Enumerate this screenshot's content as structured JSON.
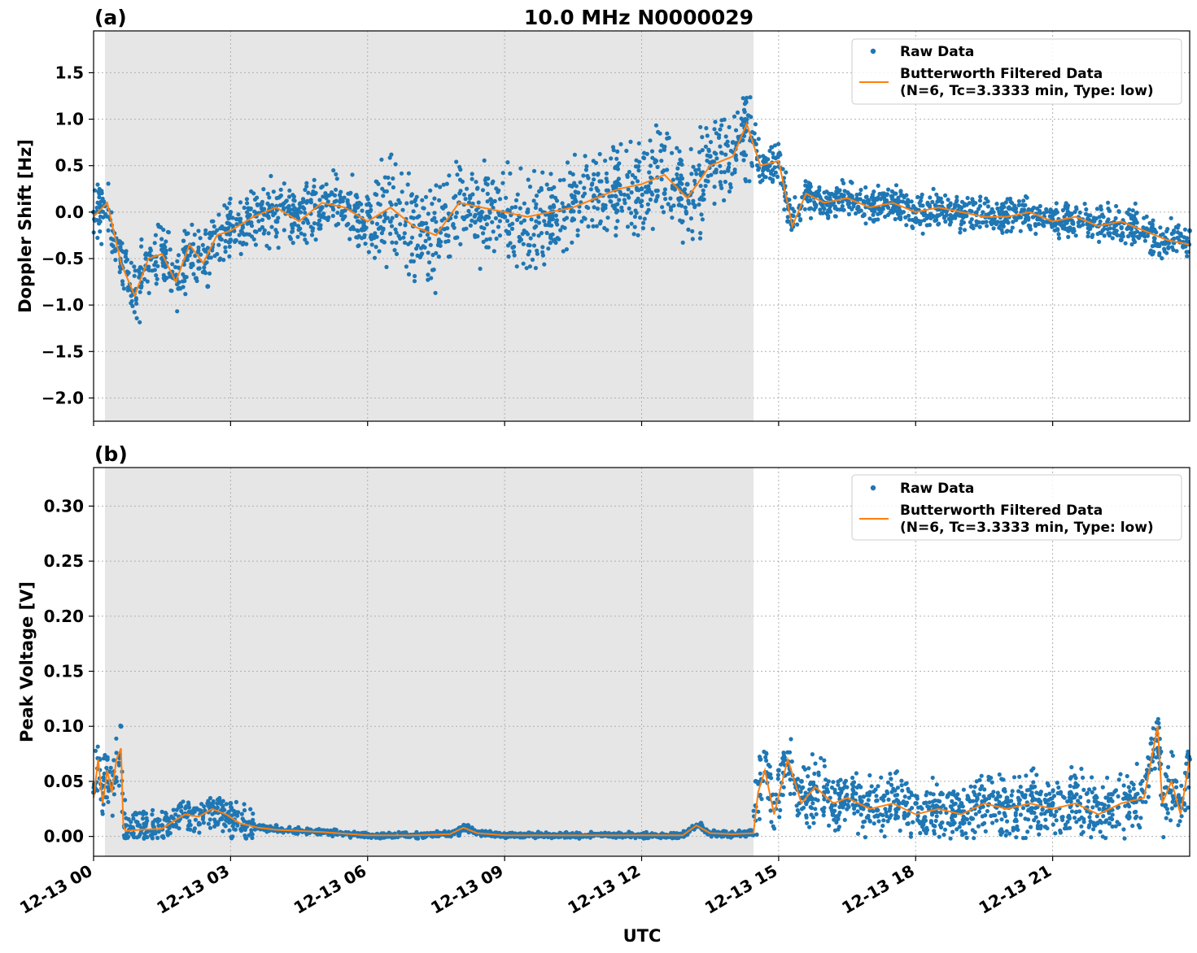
{
  "figure": {
    "title": "10.0 MHz N0000029",
    "xlabel": "UTC",
    "x_tick_labels": [
      "12-13 00",
      "12-13 03",
      "12-13 06",
      "12-13 09",
      "12-13 12",
      "12-13 15",
      "12-13 18",
      "12-13 21"
    ],
    "colors": {
      "raw": "#1f77b4",
      "filtered": "#ff7f0e",
      "night_shade": "#e6e6e6",
      "grid": "#b0b0b0"
    }
  },
  "chart_data": [
    {
      "type": "scatter",
      "panel_label": "(a)",
      "title": "10.0 MHz N0000029",
      "xlabel": "",
      "ylabel": "Doppler Shift [Hz]",
      "x_unit": "hours UTC on 12-13",
      "xlim": [
        0,
        24
      ],
      "ylim": [
        -2.25,
        1.95
      ],
      "y_ticks": [
        1.5,
        1.0,
        0.5,
        0.0,
        -0.5,
        -1.0,
        -1.5,
        -2.0
      ],
      "y_tick_labels": [
        "1.5",
        "1.0",
        "0.5",
        "0.0",
        "−0.5",
        "−1.0",
        "−1.5",
        "−2.0"
      ],
      "grid": true,
      "shaded_x_range": [
        0.25,
        14.45
      ],
      "legend": {
        "placement": "top-right",
        "entries": [
          "Raw Data",
          "Butterworth Filtered Data",
          "(N=6, Tc=3.3333 min, Type: low)"
        ]
      },
      "series": [
        {
          "name": "Raw Data",
          "style": "points",
          "x": [
            0.0,
            0.5,
            1.0,
            1.5,
            2.0,
            2.5,
            3.0,
            4.0,
            5.0,
            6.0,
            6.5,
            7.0,
            7.5,
            8.0,
            8.5,
            9.0,
            9.5,
            10.0,
            10.5,
            11.0,
            11.5,
            12.0,
            12.5,
            13.0,
            13.5,
            14.0,
            14.4,
            14.8,
            15.2,
            15.6,
            16.0,
            17.0,
            18.0,
            19.0,
            20.0,
            21.0,
            22.0,
            22.5,
            23.0,
            23.5,
            24.0
          ],
          "y": [
            0.0,
            -0.4,
            -0.7,
            -0.5,
            -0.7,
            -0.8,
            -0.3,
            -0.1,
            0.05,
            0.0,
            -0.1,
            -0.15,
            -0.2,
            0.1,
            0.0,
            -0.05,
            0.0,
            0.05,
            0.1,
            0.15,
            0.3,
            0.25,
            0.2,
            0.3,
            0.6,
            0.75,
            0.8,
            0.5,
            -0.1,
            0.15,
            0.1,
            0.05,
            0.0,
            0.0,
            -0.1,
            0.0,
            -0.15,
            -0.3,
            -0.2,
            -0.3,
            -0.2
          ]
        },
        {
          "name": "Butterworth Filtered Data",
          "style": "line",
          "x": [
            0.0,
            0.3,
            0.6,
            0.9,
            1.2,
            1.5,
            1.8,
            2.1,
            2.4,
            2.7,
            3.0,
            3.5,
            4.0,
            4.5,
            5.0,
            5.5,
            6.0,
            6.5,
            7.0,
            7.5,
            8.0,
            8.5,
            9.0,
            9.5,
            10.0,
            10.5,
            11.0,
            11.5,
            12.0,
            12.5,
            13.0,
            13.5,
            14.0,
            14.3,
            14.6,
            15.0,
            15.3,
            15.6,
            16.0,
            16.5,
            17.0,
            17.5,
            18.0,
            18.5,
            19.0,
            19.5,
            20.0,
            20.5,
            21.0,
            21.5,
            22.0,
            22.5,
            23.0,
            23.5,
            24.0
          ],
          "y": [
            -0.05,
            0.1,
            -0.55,
            -0.9,
            -0.5,
            -0.45,
            -0.75,
            -0.35,
            -0.55,
            -0.25,
            -0.2,
            -0.05,
            0.05,
            -0.1,
            0.1,
            0.05,
            -0.1,
            0.05,
            -0.15,
            -0.25,
            0.1,
            0.05,
            0.0,
            -0.05,
            0.0,
            0.05,
            0.15,
            0.25,
            0.3,
            0.4,
            0.15,
            0.5,
            0.6,
            0.95,
            0.5,
            0.55,
            -0.15,
            0.2,
            0.1,
            0.15,
            0.05,
            0.1,
            0.0,
            0.05,
            0.0,
            -0.05,
            -0.05,
            0.0,
            -0.1,
            -0.05,
            -0.15,
            -0.1,
            -0.2,
            -0.3,
            -0.35
          ]
        }
      ]
    },
    {
      "type": "scatter",
      "panel_label": "(b)",
      "title": "",
      "xlabel": "UTC",
      "ylabel": "Peak Voltage [V]",
      "x_unit": "hours UTC on 12-13",
      "xlim": [
        0,
        24
      ],
      "ylim": [
        -0.018,
        0.335
      ],
      "y_ticks": [
        0.3,
        0.25,
        0.2,
        0.15,
        0.1,
        0.05,
        0.0
      ],
      "y_tick_labels": [
        "0.30",
        "0.25",
        "0.20",
        "0.15",
        "0.10",
        "0.05",
        "0.00"
      ],
      "grid": true,
      "shaded_x_range": [
        0.25,
        14.45
      ],
      "legend": {
        "placement": "top-right",
        "entries": [
          "Raw Data",
          "Butterworth Filtered Data",
          "(N=6, Tc=3.3333 min, Type: low)"
        ]
      },
      "series": [
        {
          "name": "Raw Data",
          "style": "points",
          "x": [
            0.0,
            0.3,
            0.5,
            0.6,
            0.7,
            1.0,
            1.5,
            2.0,
            2.5,
            3.0,
            3.5,
            4.0,
            5.0,
            6.0,
            7.0,
            8.0,
            8.2,
            9.0,
            10.0,
            11.0,
            12.0,
            13.0,
            13.3,
            14.0,
            14.3,
            14.5,
            14.6,
            15.0,
            15.5,
            16.0,
            17.0,
            18.0,
            19.0,
            20.0,
            21.0,
            22.0,
            23.0,
            23.3,
            23.6,
            24.0
          ],
          "y": [
            0.04,
            0.07,
            0.05,
            0.1,
            0.01,
            0.01,
            0.01,
            0.02,
            0.03,
            0.03,
            0.01,
            0.01,
            0.005,
            0.002,
            0.001,
            0.001,
            0.01,
            0.001,
            0.001,
            0.002,
            0.002,
            0.002,
            0.012,
            0.002,
            0.002,
            0.05,
            0.07,
            0.06,
            0.05,
            0.04,
            0.04,
            0.03,
            0.03,
            0.035,
            0.03,
            0.03,
            0.04,
            0.08,
            0.05,
            0.07
          ]
        },
        {
          "name": "Butterworth Filtered Data",
          "style": "line",
          "x": [
            0.0,
            0.1,
            0.2,
            0.3,
            0.4,
            0.5,
            0.6,
            0.65,
            0.7,
            1.0,
            1.5,
            1.8,
            2.0,
            2.3,
            2.6,
            2.9,
            3.2,
            3.6,
            4.0,
            5.0,
            6.0,
            7.0,
            7.8,
            8.1,
            8.4,
            9.0,
            10.0,
            11.0,
            12.0,
            12.9,
            13.2,
            13.5,
            14.0,
            14.45,
            14.55,
            14.7,
            14.9,
            15.2,
            15.5,
            15.8,
            16.2,
            16.5,
            17.0,
            17.5,
            18.0,
            18.5,
            19.0,
            19.5,
            20.0,
            20.5,
            21.0,
            21.5,
            22.0,
            22.5,
            23.0,
            23.3,
            23.4,
            23.6,
            23.8,
            24.0
          ],
          "y": [
            0.035,
            0.07,
            0.03,
            0.06,
            0.04,
            0.07,
            0.08,
            0.01,
            0.005,
            0.006,
            0.007,
            0.015,
            0.02,
            0.018,
            0.025,
            0.02,
            0.012,
            0.008,
            0.006,
            0.004,
            0.001,
            0.001,
            0.002,
            0.008,
            0.003,
            0.001,
            0.001,
            0.001,
            0.001,
            0.001,
            0.01,
            0.003,
            0.002,
            0.003,
            0.04,
            0.06,
            0.02,
            0.07,
            0.03,
            0.045,
            0.03,
            0.035,
            0.025,
            0.03,
            0.02,
            0.025,
            0.02,
            0.03,
            0.025,
            0.03,
            0.025,
            0.03,
            0.02,
            0.03,
            0.035,
            0.1,
            0.03,
            0.05,
            0.02,
            0.07
          ]
        }
      ]
    }
  ]
}
